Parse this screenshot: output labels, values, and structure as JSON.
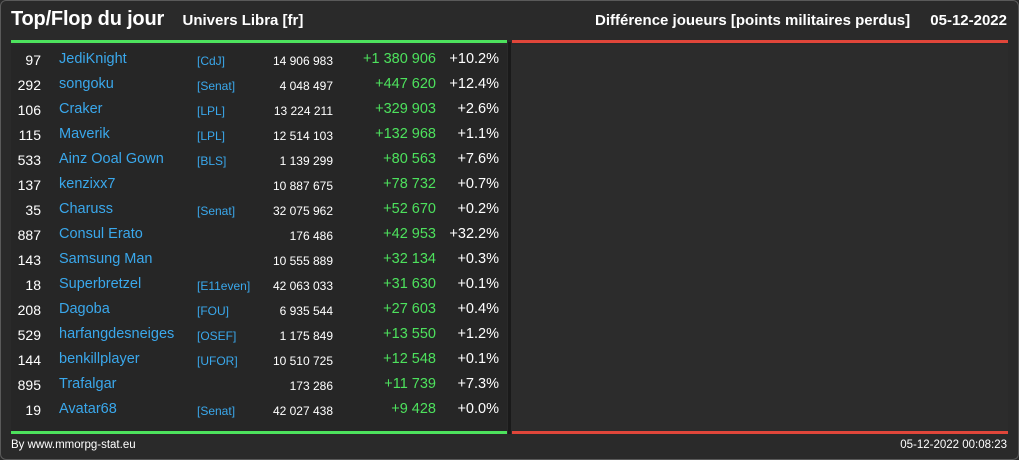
{
  "header": {
    "title": "Top/Flop du jour",
    "universe": "Univers Libra [fr]",
    "subtitle": "Différence joueurs [points militaires perdus]",
    "date": "05-12-2022"
  },
  "colors": {
    "background": "#2a2a2a",
    "link": "#3aa8ec",
    "positive": "#4de25d",
    "negative": "#e0463a"
  },
  "rows": [
    {
      "rank": "97",
      "name": "JediKnight",
      "ally": "[CdJ]",
      "points": "14 906 983",
      "diff": "+1 380 906",
      "pct": "+10.2%"
    },
    {
      "rank": "292",
      "name": "songoku",
      "ally": "[Senat]",
      "points": "4 048 497",
      "diff": "+447 620",
      "pct": "+12.4%"
    },
    {
      "rank": "106",
      "name": "Craker",
      "ally": "[LPL]",
      "points": "13 224 211",
      "diff": "+329 903",
      "pct": "+2.6%"
    },
    {
      "rank": "115",
      "name": "Maverik",
      "ally": "[LPL]",
      "points": "12 514 103",
      "diff": "+132 968",
      "pct": "+1.1%"
    },
    {
      "rank": "533",
      "name": "Ainz Ooal Gown",
      "ally": "[BLS]",
      "points": "1 139 299",
      "diff": "+80 563",
      "pct": "+7.6%"
    },
    {
      "rank": "137",
      "name": "kenzixx7",
      "ally": "",
      "points": "10 887 675",
      "diff": "+78 732",
      "pct": "+0.7%"
    },
    {
      "rank": "35",
      "name": "Charuss",
      "ally": "[Senat]",
      "points": "32 075 962",
      "diff": "+52 670",
      "pct": "+0.2%"
    },
    {
      "rank": "887",
      "name": "Consul Erato",
      "ally": "",
      "points": "176 486",
      "diff": "+42 953",
      "pct": "+32.2%"
    },
    {
      "rank": "143",
      "name": "Samsung Man",
      "ally": "",
      "points": "10 555 889",
      "diff": "+32 134",
      "pct": "+0.3%"
    },
    {
      "rank": "18",
      "name": "Superbretzel",
      "ally": "[E11even]",
      "points": "42 063 033",
      "diff": "+31 630",
      "pct": "+0.1%"
    },
    {
      "rank": "208",
      "name": "Dagoba",
      "ally": "[FOU]",
      "points": "6 935 544",
      "diff": "+27 603",
      "pct": "+0.4%"
    },
    {
      "rank": "529",
      "name": "harfangdesneiges",
      "ally": "[OSEF]",
      "points": "1 175 849",
      "diff": "+13 550",
      "pct": "+1.2%"
    },
    {
      "rank": "144",
      "name": "benkillplayer",
      "ally": "[UFOR]",
      "points": "10 510 725",
      "diff": "+12 548",
      "pct": "+0.1%"
    },
    {
      "rank": "895",
      "name": "Trafalgar",
      "ally": "",
      "points": "173 286",
      "diff": "+11 739",
      "pct": "+7.3%"
    },
    {
      "rank": "19",
      "name": "Avatar68",
      "ally": "[Senat]",
      "points": "42 027 438",
      "diff": "+9 428",
      "pct": "+0.0%"
    }
  ],
  "footer": {
    "credit": "By www.mmorpg-stat.eu",
    "timestamp": "05-12-2022 00:08:23"
  }
}
